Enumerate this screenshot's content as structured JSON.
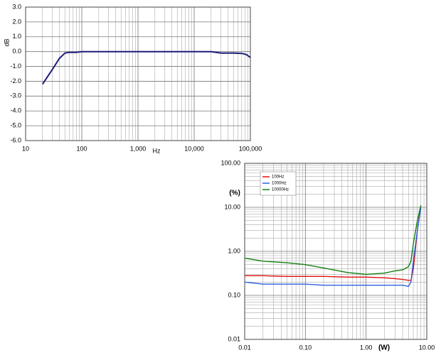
{
  "chart_data": [
    {
      "type": "line",
      "y_label": "dB",
      "x_label": "Hz",
      "xscale": "log",
      "grid": true,
      "x": [
        20,
        30,
        40,
        50,
        60,
        80,
        100,
        200,
        1000,
        10000,
        20000,
        30000,
        50000,
        70000,
        85000,
        100000
      ],
      "series": [
        {
          "color": "#1c1c7a",
          "values": [
            -2.2,
            -1.2,
            -0.45,
            -0.1,
            -0.05,
            -0.05,
            0,
            0,
            0,
            0,
            0,
            -0.1,
            -0.1,
            -0.12,
            -0.2,
            -0.4
          ]
        }
      ],
      "xlim": [
        10,
        100000
      ],
      "xticks": [
        10,
        100,
        {
          "value": 1000,
          "label": "1,000"
        },
        {
          "value": 10000,
          "label": "10,000"
        },
        {
          "value": 100000,
          "label": "100,000"
        }
      ],
      "ylim": [
        -6,
        3
      ],
      "yticks": [
        {
          "value": 3,
          "label": "3.0"
        },
        {
          "value": 2,
          "label": "2.0"
        },
        {
          "value": 1,
          "label": "1.0"
        },
        {
          "value": 0,
          "label": "0.0"
        },
        {
          "value": -1,
          "label": "-1.0"
        },
        {
          "value": -2,
          "label": "-2.0"
        },
        {
          "value": -3,
          "label": "-3.0"
        },
        {
          "value": -4,
          "label": "-4.0"
        },
        {
          "value": -5,
          "label": "-5.0"
        },
        {
          "value": -6,
          "label": "-6.0"
        }
      ]
    },
    {
      "type": "line",
      "y_label": "(%)",
      "x_label": "(W)",
      "xscale": "log",
      "yscale": "log",
      "grid": true,
      "legend": "upper left",
      "x": [
        0.01,
        0.02,
        0.05,
        0.1,
        0.2,
        0.5,
        1,
        2,
        3,
        4,
        5,
        5.5,
        6,
        7,
        8
      ],
      "series": [
        {
          "name": "100Hz",
          "color": "#e01010",
          "values": [
            0.28,
            0.28,
            0.27,
            0.27,
            0.27,
            0.26,
            0.26,
            0.25,
            0.24,
            0.23,
            0.22,
            0.22,
            0.4,
            3,
            11
          ]
        },
        {
          "name": "1000Hz",
          "color": "#3060e0",
          "values": [
            0.2,
            0.18,
            0.18,
            0.18,
            0.17,
            0.17,
            0.17,
            0.17,
            0.17,
            0.17,
            0.16,
            0.2,
            0.6,
            3,
            10
          ]
        },
        {
          "name": "10000Hz",
          "color": "#108010",
          "values": [
            0.7,
            0.6,
            0.55,
            0.5,
            0.42,
            0.33,
            0.3,
            0.32,
            0.36,
            0.38,
            0.45,
            0.6,
            1.5,
            5,
            11
          ]
        }
      ],
      "xlim": [
        0.01,
        10
      ],
      "xticks": [
        {
          "value": 0.01,
          "label": "0.01"
        },
        {
          "value": 0.1,
          "label": "0.10"
        },
        {
          "value": 1,
          "label": "1.00"
        },
        {
          "value": 10,
          "label": "10.00"
        }
      ],
      "ylim": [
        0.01,
        100
      ],
      "yticks": [
        {
          "value": 100,
          "label": "100.00"
        },
        {
          "value": 10,
          "label": "10.00"
        },
        {
          "value": 1,
          "label": "1.00"
        },
        {
          "value": 0.1,
          "label": "0.10"
        },
        {
          "value": 0.01,
          "label": "0.01"
        }
      ]
    }
  ]
}
